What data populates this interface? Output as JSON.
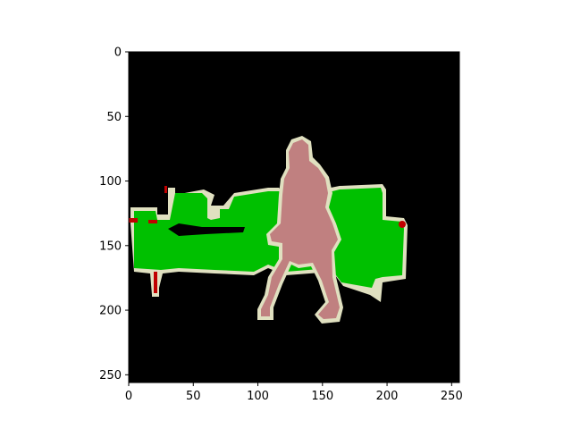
{
  "figure": {
    "background_color": "#ffffff",
    "image": {
      "description_classes": [
        "background",
        "sofa",
        "person",
        "boundary",
        "chair"
      ],
      "colors": {
        "background": "#000000",
        "sofa": "#00c000",
        "person": "#c08080",
        "boundary": "#e0e0c0",
        "chair": "#c00000"
      }
    },
    "axes": {
      "x": {
        "ticks": [
          0,
          50,
          100,
          150,
          200,
          250
        ],
        "range": [
          0,
          256
        ]
      },
      "y": {
        "ticks": [
          0,
          50,
          100,
          150,
          200,
          250
        ],
        "range": [
          0,
          256
        ]
      }
    }
  }
}
